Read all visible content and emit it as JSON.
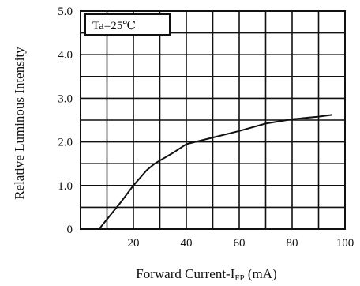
{
  "chart_data": {
    "type": "line",
    "xlabel_main": "Forward Current-I",
    "xlabel_sub": "FP",
    "xlabel_unit": " (mA)",
    "ylabel": "Relative Luminous Intensity",
    "annotation": "Ta=25℃",
    "x_ticks": [
      "20",
      "40",
      "60",
      "80",
      "100"
    ],
    "y_ticks": [
      "0",
      "1.0",
      "2.0",
      "3.0",
      "4.0",
      "5.0"
    ],
    "xlim": [
      0,
      100
    ],
    "ylim": [
      0,
      5
    ],
    "grid": true,
    "series": [
      {
        "x": [
          7,
          15,
          20,
          25,
          28,
          35,
          40,
          50,
          60,
          70,
          80,
          90,
          95
        ],
        "y": [
          0,
          0.6,
          1.0,
          1.35,
          1.5,
          1.75,
          1.95,
          2.1,
          2.25,
          2.42,
          2.52,
          2.58,
          2.62
        ]
      }
    ]
  }
}
